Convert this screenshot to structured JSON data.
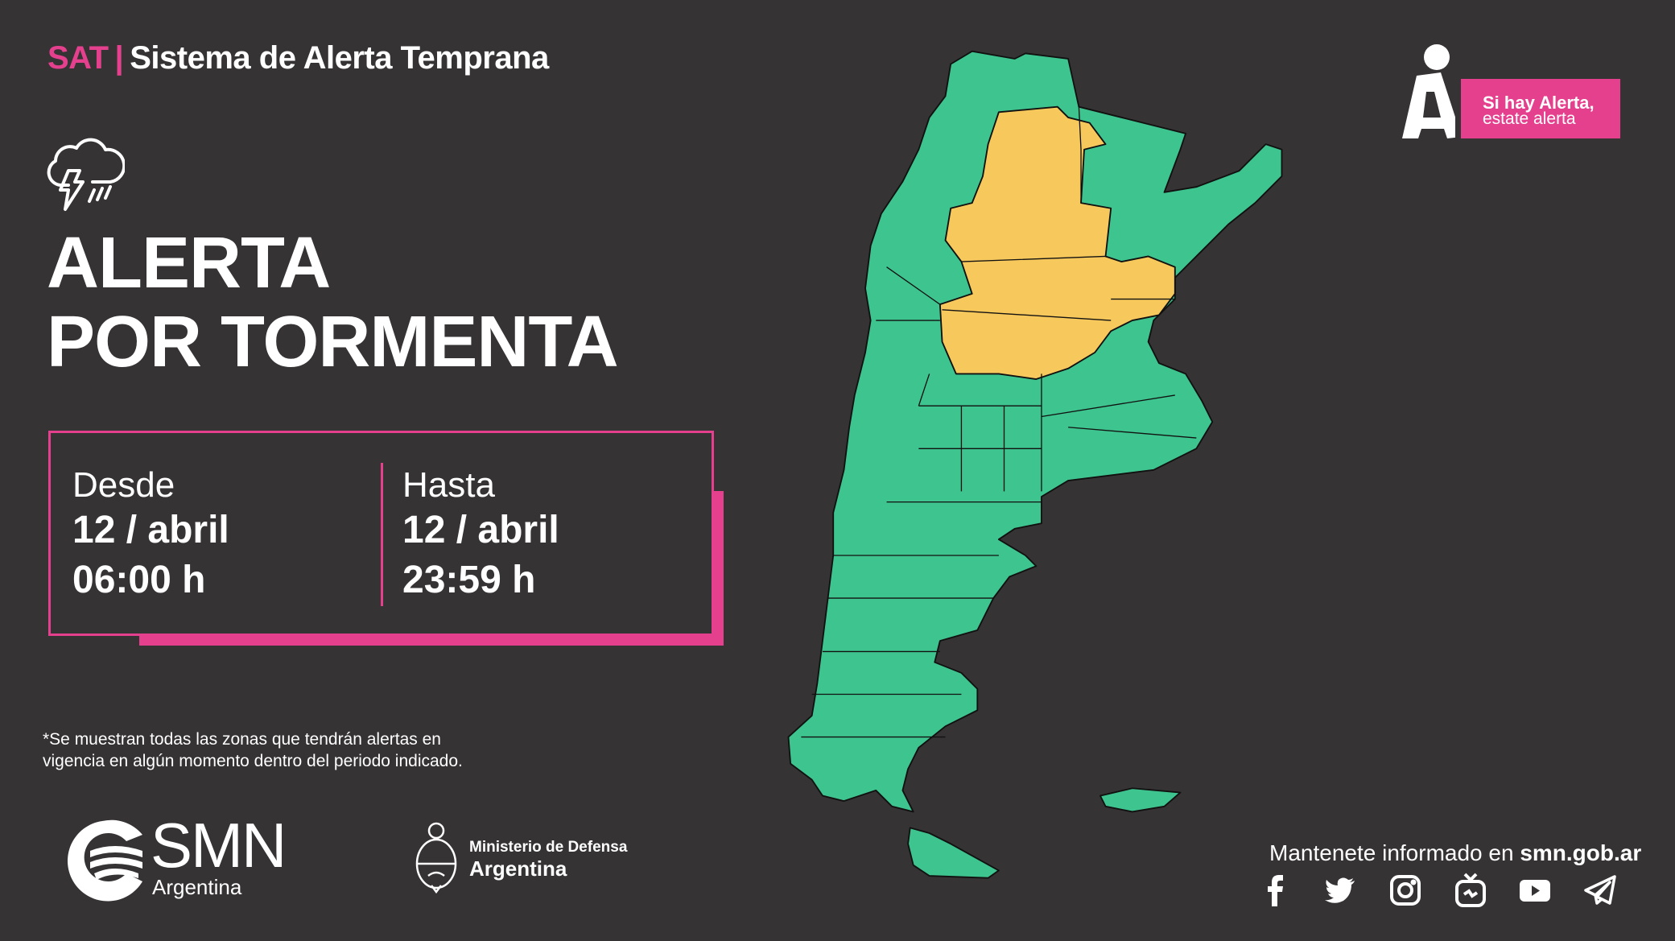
{
  "header": {
    "sat": "SAT",
    "separator": "|",
    "system": "Sistema de Alerta Temprana"
  },
  "alert": {
    "icon": "storm-cloud-icon",
    "line1": "ALERTA",
    "line2": "POR TORMENTA"
  },
  "period": {
    "from": {
      "label": "Desde",
      "date": "12 / abril",
      "time": "06:00 h"
    },
    "to": {
      "label": "Hasta",
      "date": "12 / abril",
      "time": "23:59 h"
    }
  },
  "footnote": {
    "line1": "*Se muestran todas las zonas que tendrán alertas en",
    "line2": "vigencia en algún momento dentro del periodo indicado."
  },
  "logos": {
    "smn": "SMN",
    "smn_sub": "Argentina",
    "ministry_1": "Ministerio de Defensa",
    "ministry_2": "Argentina"
  },
  "campaign": {
    "line1": "Si hay Alerta,",
    "line2": "estate alerta"
  },
  "contact": {
    "text": "Mantenete informado en ",
    "site": "smn.gob.ar"
  },
  "social": [
    "facebook-icon",
    "twitter-icon",
    "instagram-icon",
    "igtv-icon",
    "youtube-icon",
    "telegram-icon"
  ],
  "map": {
    "legend_colors": {
      "no_alert": "#3ec48f",
      "storm_alert_yellow": "#f7c85b"
    }
  },
  "colors": {
    "background": "#363334",
    "accent": "#e5408e"
  }
}
